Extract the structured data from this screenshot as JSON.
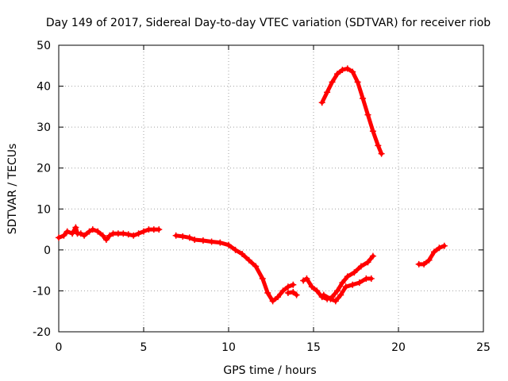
{
  "chart_data": {
    "type": "line",
    "title": "Day 149 of 2017, Sidereal Day-to-day VTEC variation (SDTVAR) for receiver riob",
    "xlabel": "GPS time / hours",
    "ylabel": "SDTVAR / TECUs",
    "xlim": [
      0,
      25
    ],
    "ylim": [
      -20,
      50
    ],
    "xticks": [
      0,
      5,
      10,
      15,
      20,
      25
    ],
    "yticks": [
      -20,
      -10,
      0,
      10,
      20,
      30,
      40,
      50
    ],
    "grid": true,
    "color": "#ff0000",
    "series": [
      {
        "name": "segment-1",
        "x": [
          0.0,
          0.3,
          0.5,
          0.8,
          1.0,
          1.1,
          1.3,
          1.5,
          1.8,
          2.0,
          2.3,
          2.6,
          2.8,
          3.0,
          3.2,
          3.5,
          3.8,
          4.1,
          4.4,
          4.7,
          5.0,
          5.3,
          5.6,
          5.9
        ],
        "y": [
          3.0,
          3.5,
          4.5,
          4.0,
          5.5,
          4.0,
          4.0,
          3.5,
          4.5,
          5.0,
          4.5,
          3.5,
          2.5,
          3.5,
          4.0,
          4.0,
          4.0,
          3.8,
          3.5,
          4.0,
          4.5,
          5.0,
          5.0,
          5.0
        ]
      },
      {
        "name": "segment-2",
        "x": [
          6.9,
          7.3,
          7.7,
          8.0,
          8.5,
          9.0,
          9.5,
          10.0,
          10.4,
          10.8,
          11.2,
          11.6,
          12.0,
          12.3,
          12.6,
          12.9,
          13.2,
          13.5,
          13.8
        ],
        "y": [
          3.5,
          3.3,
          3.0,
          2.5,
          2.3,
          2.0,
          1.8,
          1.2,
          0.0,
          -1.0,
          -2.5,
          -4.0,
          -7.0,
          -10.5,
          -12.5,
          -11.5,
          -10.0,
          -9.0,
          -8.5
        ]
      },
      {
        "name": "segment-3",
        "x": [
          13.5,
          13.8,
          14.0
        ],
        "y": [
          -10.5,
          -10.3,
          -11.0
        ]
      },
      {
        "name": "segment-4",
        "x": [
          14.4,
          14.6,
          14.9,
          15.2,
          15.5,
          15.8,
          16.1,
          16.4,
          16.7,
          17.0,
          17.4,
          17.8,
          18.2,
          18.5
        ],
        "y": [
          -7.5,
          -7.0,
          -9.0,
          -10.0,
          -11.5,
          -12.0,
          -11.5,
          -10.0,
          -8.0,
          -6.5,
          -5.5,
          -4.0,
          -3.0,
          -1.5
        ]
      },
      {
        "name": "segment-5",
        "x": [
          15.6,
          16.0,
          16.3,
          16.6,
          16.9,
          17.3,
          17.7,
          18.1,
          18.4
        ],
        "y": [
          -11.0,
          -12.0,
          -12.5,
          -11.0,
          -9.0,
          -8.5,
          -8.0,
          -7.0,
          -7.0
        ]
      },
      {
        "name": "segment-6",
        "x": [
          15.5,
          15.8,
          16.1,
          16.4,
          16.7,
          17.0,
          17.3,
          17.6,
          17.9,
          18.2,
          18.5,
          18.8,
          19.0
        ],
        "y": [
          36.0,
          38.5,
          41.0,
          43.0,
          44.0,
          44.3,
          43.5,
          41.0,
          37.0,
          33.0,
          29.0,
          25.5,
          23.5
        ]
      },
      {
        "name": "segment-7",
        "x": [
          21.2,
          21.5,
          21.8,
          22.1,
          22.4,
          22.7
        ],
        "y": [
          -3.5,
          -3.5,
          -2.5,
          -0.5,
          0.5,
          1.0
        ]
      }
    ]
  }
}
